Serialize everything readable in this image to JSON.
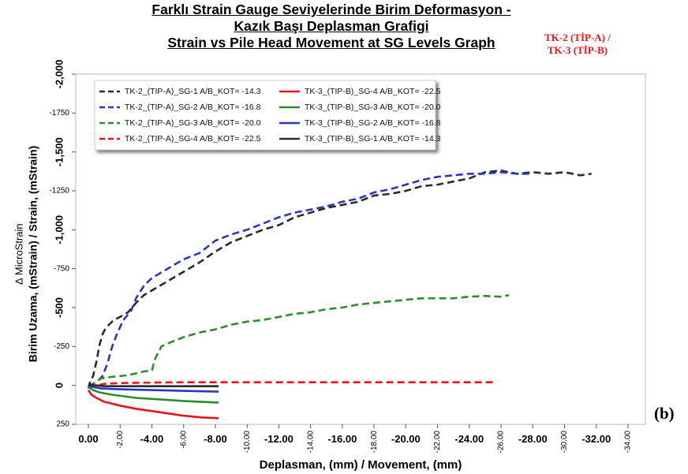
{
  "title_lines": [
    "Farklı Strain Gauge Seviyelerinde Birim Deformasyon -",
    "Kazık Başı Deplasman Grafigi",
    "Strain vs Pile Head Movement at SG Levels Graph"
  ],
  "tag_lines": [
    "TK-2 (TİP-A) /",
    "TK-3 (TİP-B)"
  ],
  "panel_label": "(b)",
  "chart_data": {
    "type": "line",
    "xlabel": "Deplasman, (mm) / Movement, (mm)",
    "ylabel_lines": [
      "∆ MicroStrain",
      "Birim Uzama, (mStrain) / Strain, (mStrain)"
    ],
    "xlim": [
      0,
      -34
    ],
    "ylim": [
      250,
      -2000
    ],
    "x_ticks": [
      {
        "v": 0,
        "label": "0.00",
        "rot": false
      },
      {
        "v": -2,
        "label": "-2.00",
        "rot": true
      },
      {
        "v": -4,
        "label": "-4.00",
        "rot": false
      },
      {
        "v": -6,
        "label": "-6.00",
        "rot": true
      },
      {
        "v": -8,
        "label": "-8.00",
        "rot": false
      },
      {
        "v": -10,
        "label": "-10.00",
        "rot": true
      },
      {
        "v": -12,
        "label": "-12.00",
        "rot": false
      },
      {
        "v": -14,
        "label": "-14.00",
        "rot": true
      },
      {
        "v": -16,
        "label": "-16.00",
        "rot": false
      },
      {
        "v": -18,
        "label": "-18.00",
        "rot": true
      },
      {
        "v": -20,
        "label": "-20.00",
        "rot": false
      },
      {
        "v": -22,
        "label": "-22.00",
        "rot": true
      },
      {
        "v": -24,
        "label": "-24.00",
        "rot": false
      },
      {
        "v": -26,
        "label": "-26.00",
        "rot": true
      },
      {
        "v": -28,
        "label": "-28.00",
        "rot": false
      },
      {
        "v": -30,
        "label": "-30.00",
        "rot": true
      },
      {
        "v": -32,
        "label": "-32.00",
        "rot": false
      },
      {
        "v": -34,
        "label": "-34.00",
        "rot": true
      }
    ],
    "y_ticks": [
      {
        "v": -2000,
        "label": "-2,000",
        "rot": true
      },
      {
        "v": -1750,
        "label": "-1750",
        "rot": false
      },
      {
        "v": -1500,
        "label": "-1,500",
        "rot": true
      },
      {
        "v": -1250,
        "label": "-1250",
        "rot": false
      },
      {
        "v": -1000,
        "label": "-1,000",
        "rot": true
      },
      {
        "v": -750,
        "label": "-750",
        "rot": false
      },
      {
        "v": -500,
        "label": "-500",
        "rot": true
      },
      {
        "v": -250,
        "label": "-250",
        "rot": false
      },
      {
        "v": 0,
        "label": "0",
        "rot": true
      },
      {
        "v": 250,
        "label": "250",
        "rot": false
      }
    ],
    "grid": false,
    "legend_position": "top-left",
    "legend_columns": [
      [
        "TK-2_(TIP-A)_SG-1 A/B_KOT= -14.3",
        "TK-2_(TIP-A)_SG-2 A/B_KOT= -16.8",
        "TK-2_(TIP-A)_SG-3 A/B_KOT= -20.0",
        "TK-2_(TIP-A)_SG-4 A/B_KOT= -22.5"
      ],
      [
        "TK-3_(TIP-B)_SG-4 A/B_KOT= -22.5",
        "TK-3_(TIP-B)_SG-3 A/B_KOT= -20.0",
        "TK-3_(TIP-B)_SG-2 A/B_KOT= -16.8",
        "TK-3_(TIP-B)_SG-1 A/B_KOT= -14.3"
      ]
    ],
    "series": [
      {
        "name": "TK-2_(TIP-A)_SG-1 A/B_KOT= -14.3",
        "color": "#2b2b2b",
        "dash": true,
        "points": [
          [
            0,
            20
          ],
          [
            -0.1,
            -20
          ],
          [
            -0.3,
            -60
          ],
          [
            -0.5,
            -150
          ],
          [
            -0.7,
            -260
          ],
          [
            -0.9,
            -330
          ],
          [
            -1.1,
            -370
          ],
          [
            -1.3,
            -390
          ],
          [
            -1.6,
            -420
          ],
          [
            -2,
            -440
          ],
          [
            -2.5,
            -470
          ],
          [
            -3,
            -530
          ],
          [
            -3.5,
            -580
          ],
          [
            -4,
            -610
          ],
          [
            -4.5,
            -640
          ],
          [
            -5,
            -670
          ],
          [
            -5.5,
            -700
          ],
          [
            -6,
            -730
          ],
          [
            -7,
            -790
          ],
          [
            -8,
            -860
          ],
          [
            -9,
            -920
          ],
          [
            -10,
            -960
          ],
          [
            -11,
            -1000
          ],
          [
            -12,
            -1030
          ],
          [
            -13,
            -1080
          ],
          [
            -14,
            -1110
          ],
          [
            -15,
            -1140
          ],
          [
            -16,
            -1160
          ],
          [
            -17,
            -1180
          ],
          [
            -18,
            -1220
          ],
          [
            -19,
            -1230
          ],
          [
            -20,
            -1250
          ],
          [
            -21,
            -1280
          ],
          [
            -22,
            -1290
          ],
          [
            -23,
            -1310
          ],
          [
            -24,
            -1330
          ],
          [
            -25,
            -1370
          ],
          [
            -26,
            -1380
          ],
          [
            -27,
            -1360
          ],
          [
            -28,
            -1370
          ],
          [
            -29,
            -1360
          ],
          [
            -30,
            -1370
          ],
          [
            -31,
            -1350
          ],
          [
            -31.7,
            -1360
          ]
        ]
      },
      {
        "name": "TK-2_(TIP-A)_SG-2 A/B_KOT= -16.8",
        "color": "#2b35c4",
        "dash": true,
        "points": [
          [
            0,
            0
          ],
          [
            -0.3,
            -10
          ],
          [
            -0.6,
            -30
          ],
          [
            -0.9,
            -60
          ],
          [
            -1.2,
            -140
          ],
          [
            -1.5,
            -250
          ],
          [
            -1.8,
            -330
          ],
          [
            -2.2,
            -420
          ],
          [
            -2.7,
            -480
          ],
          [
            -3,
            -560
          ],
          [
            -3.5,
            -640
          ],
          [
            -4,
            -690
          ],
          [
            -4.5,
            -720
          ],
          [
            -5,
            -750
          ],
          [
            -5.5,
            -780
          ],
          [
            -6,
            -810
          ],
          [
            -7,
            -850
          ],
          [
            -7.5,
            -890
          ],
          [
            -8,
            -930
          ],
          [
            -9,
            -970
          ],
          [
            -10,
            -1000
          ],
          [
            -11,
            -1040
          ],
          [
            -12,
            -1080
          ],
          [
            -13,
            -1110
          ],
          [
            -14,
            -1130
          ],
          [
            -15,
            -1150
          ],
          [
            -16,
            -1180
          ],
          [
            -17,
            -1200
          ],
          [
            -18,
            -1240
          ],
          [
            -19,
            -1260
          ],
          [
            -20,
            -1290
          ],
          [
            -21,
            -1320
          ],
          [
            -22,
            -1340
          ],
          [
            -23,
            -1350
          ],
          [
            -24,
            -1360
          ],
          [
            -25,
            -1360
          ],
          [
            -26,
            -1370
          ],
          [
            -27,
            -1360
          ],
          [
            -28,
            -1360
          ]
        ]
      },
      {
        "name": "TK-2_(TIP-A)_SG-3 A/B_KOT= -20.0",
        "color": "#2e8b2e",
        "dash": true,
        "points": [
          [
            0,
            0
          ],
          [
            -0.3,
            -10
          ],
          [
            -0.8,
            -45
          ],
          [
            -1.5,
            -55
          ],
          [
            -2.5,
            -65
          ],
          [
            -3.5,
            -90
          ],
          [
            -4,
            -95
          ],
          [
            -4.2,
            -170
          ],
          [
            -4.6,
            -250
          ],
          [
            -5,
            -270
          ],
          [
            -6,
            -310
          ],
          [
            -7,
            -340
          ],
          [
            -8,
            -360
          ],
          [
            -9,
            -390
          ],
          [
            -10,
            -410
          ],
          [
            -11,
            -420
          ],
          [
            -12,
            -440
          ],
          [
            -13,
            -460
          ],
          [
            -14,
            -470
          ],
          [
            -15,
            -490
          ],
          [
            -16,
            -500
          ],
          [
            -17,
            -520
          ],
          [
            -18,
            -530
          ],
          [
            -19,
            -540
          ],
          [
            -20,
            -550
          ],
          [
            -21,
            -560
          ],
          [
            -22,
            -560
          ],
          [
            -23,
            -560
          ],
          [
            -24,
            -570
          ],
          [
            -25,
            -575
          ],
          [
            -26,
            -570
          ],
          [
            -26.5,
            -580
          ]
        ]
      },
      {
        "name": "TK-2_(TIP-A)_SG-4 A/B_KOT= -22.5",
        "color": "#e8141c",
        "dash": true,
        "points": [
          [
            0,
            10
          ],
          [
            -0.5,
            0
          ],
          [
            -1,
            -10
          ],
          [
            -2,
            -15
          ],
          [
            -4,
            -18
          ],
          [
            -6,
            -20
          ],
          [
            -8,
            -20
          ],
          [
            -10,
            -20
          ],
          [
            -12,
            -20
          ],
          [
            -14,
            -20
          ],
          [
            -16,
            -20
          ],
          [
            -18,
            -20
          ],
          [
            -20,
            -20
          ],
          [
            -22,
            -20
          ],
          [
            -24,
            -20
          ],
          [
            -25.5,
            -20
          ]
        ]
      },
      {
        "name": "TK-3_(TIP-B)_SG-4 A/B_KOT= -22.5",
        "color": "#e8141c",
        "dash": false,
        "points": [
          [
            0,
            30
          ],
          [
            -0.2,
            60
          ],
          [
            -0.5,
            80
          ],
          [
            -1,
            105
          ],
          [
            -2,
            130
          ],
          [
            -3,
            150
          ],
          [
            -4,
            165
          ],
          [
            -5,
            180
          ],
          [
            -6,
            195
          ],
          [
            -7,
            205
          ],
          [
            -8,
            210
          ],
          [
            -8.2,
            212
          ]
        ]
      },
      {
        "name": "TK-3_(TIP-B)_SG-3 A/B_KOT= -20.0",
        "color": "#2e8b2e",
        "dash": false,
        "points": [
          [
            0,
            10
          ],
          [
            -0.3,
            30
          ],
          [
            -0.7,
            45
          ],
          [
            -1.5,
            60
          ],
          [
            -3,
            80
          ],
          [
            -4.5,
            90
          ],
          [
            -6,
            100
          ],
          [
            -7,
            105
          ],
          [
            -8.2,
            110
          ]
        ]
      },
      {
        "name": "TK-3_(TIP-B)_SG-2 A/B_KOT= -16.8",
        "color": "#2b35c4",
        "dash": false,
        "points": [
          [
            0,
            0
          ],
          [
            -0.3,
            10
          ],
          [
            -0.8,
            20
          ],
          [
            -2,
            25
          ],
          [
            -4,
            30
          ],
          [
            -6,
            35
          ],
          [
            -8.2,
            40
          ]
        ]
      },
      {
        "name": "TK-3_(TIP-B)_SG-1 A/B_KOT= -14.3",
        "color": "#2b2b2b",
        "dash": false,
        "points": [
          [
            0,
            -5
          ],
          [
            -0.5,
            0
          ],
          [
            -1,
            5
          ],
          [
            -3,
            5
          ],
          [
            -5,
            5
          ],
          [
            -7,
            5
          ],
          [
            -8.2,
            5
          ]
        ]
      }
    ]
  }
}
